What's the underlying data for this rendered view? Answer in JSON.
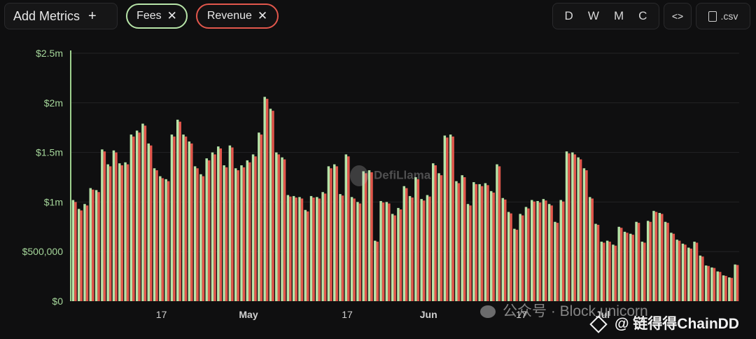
{
  "toolbar": {
    "add_metrics_label": "Add Metrics",
    "plus_icon": "+",
    "chips": [
      {
        "label": "Fees",
        "close": "✕",
        "color": "#b7e4a8"
      },
      {
        "label": "Revenue",
        "close": "✕",
        "color": "#e2574c"
      }
    ],
    "periods": [
      "D",
      "W",
      "M",
      "C"
    ],
    "embed_label": "<>",
    "csv_label": ".csv"
  },
  "chart_data": {
    "type": "bar",
    "title": "",
    "xlabel": "",
    "ylabel": "",
    "ylim": [
      0,
      2500000
    ],
    "yticks": [
      {
        "value": 0,
        "label": "$0"
      },
      {
        "value": 500000,
        "label": "$500,000"
      },
      {
        "value": 1000000,
        "label": "$1m"
      },
      {
        "value": 1500000,
        "label": "$1.5m"
      },
      {
        "value": 2000000,
        "label": "$2m"
      },
      {
        "value": 2500000,
        "label": "$2.5m"
      }
    ],
    "xticks": [
      {
        "index": 15.5,
        "label": "17",
        "month": false
      },
      {
        "index": 30.5,
        "label": "May",
        "month": true
      },
      {
        "index": 47.5,
        "label": "17",
        "month": false
      },
      {
        "index": 61.5,
        "label": "Jun",
        "month": true
      },
      {
        "index": 77.5,
        "label": "17",
        "month": false
      },
      {
        "index": 91.5,
        "label": "Jul",
        "month": true
      }
    ],
    "grid": true,
    "series": [
      {
        "name": "Fees",
        "color": "#b7e4a8",
        "values": [
          1020000,
          930000,
          980000,
          1140000,
          1120000,
          1530000,
          1380000,
          1520000,
          1390000,
          1400000,
          1680000,
          1720000,
          1790000,
          1590000,
          1340000,
          1260000,
          1230000,
          1680000,
          1830000,
          1680000,
          1610000,
          1360000,
          1280000,
          1440000,
          1500000,
          1560000,
          1370000,
          1570000,
          1340000,
          1370000,
          1420000,
          1480000,
          1700000,
          2060000,
          1940000,
          1500000,
          1450000,
          1070000,
          1060000,
          1050000,
          920000,
          1060000,
          1050000,
          1100000,
          1360000,
          1380000,
          1080000,
          1480000,
          1050000,
          1000000,
          1310000,
          1320000,
          610000,
          1010000,
          1000000,
          880000,
          940000,
          1160000,
          1060000,
          1250000,
          1030000,
          1070000,
          1390000,
          1290000,
          1670000,
          1680000,
          1210000,
          1270000,
          980000,
          1200000,
          1180000,
          1190000,
          1110000,
          1380000,
          1040000,
          900000,
          730000,
          880000,
          950000,
          1020000,
          1010000,
          1030000,
          980000,
          800000,
          1020000,
          1510000,
          1500000,
          1450000,
          1340000,
          1050000,
          780000,
          600000,
          610000,
          570000,
          750000,
          700000,
          680000,
          800000,
          600000,
          810000,
          910000,
          890000,
          800000,
          690000,
          620000,
          580000,
          540000,
          600000,
          460000,
          360000,
          340000,
          300000,
          260000,
          240000,
          370000
        ],
        "values_revenue": []
      },
      {
        "name": "Revenue",
        "color": "#e2574c",
        "values": [
          1000000,
          915000,
          965000,
          1125000,
          1100000,
          1510000,
          1360000,
          1500000,
          1370000,
          1380000,
          1660000,
          1700000,
          1770000,
          1570000,
          1320000,
          1240000,
          1210000,
          1660000,
          1810000,
          1660000,
          1590000,
          1340000,
          1260000,
          1420000,
          1480000,
          1540000,
          1350000,
          1550000,
          1320000,
          1350000,
          1400000,
          1460000,
          1680000,
          2040000,
          1920000,
          1480000,
          1430000,
          1055000,
          1045000,
          1035000,
          905000,
          1045000,
          1035000,
          1085000,
          1340000,
          1360000,
          1065000,
          1460000,
          1035000,
          985000,
          1290000,
          1300000,
          600000,
          995000,
          985000,
          865000,
          925000,
          1140000,
          1045000,
          1230000,
          1015000,
          1055000,
          1370000,
          1270000,
          1650000,
          1660000,
          1190000,
          1250000,
          965000,
          1180000,
          1160000,
          1170000,
          1095000,
          1360000,
          1025000,
          885000,
          720000,
          865000,
          935000,
          1005000,
          995000,
          1015000,
          965000,
          790000,
          1005000,
          1490000,
          1480000,
          1430000,
          1320000,
          1035000,
          770000,
          590000,
          600000,
          560000,
          740000,
          690000,
          670000,
          790000,
          590000,
          800000,
          900000,
          880000,
          790000,
          680000,
          610000,
          570000,
          530000,
          590000,
          450000,
          355000,
          335000,
          295000,
          255000,
          235000,
          365000
        ]
      }
    ]
  },
  "watermarks": {
    "defillama": "DefiLlama",
    "wechat": "公众号 · Block unicorn",
    "chaindd": "@ 链得得ChainDD"
  }
}
